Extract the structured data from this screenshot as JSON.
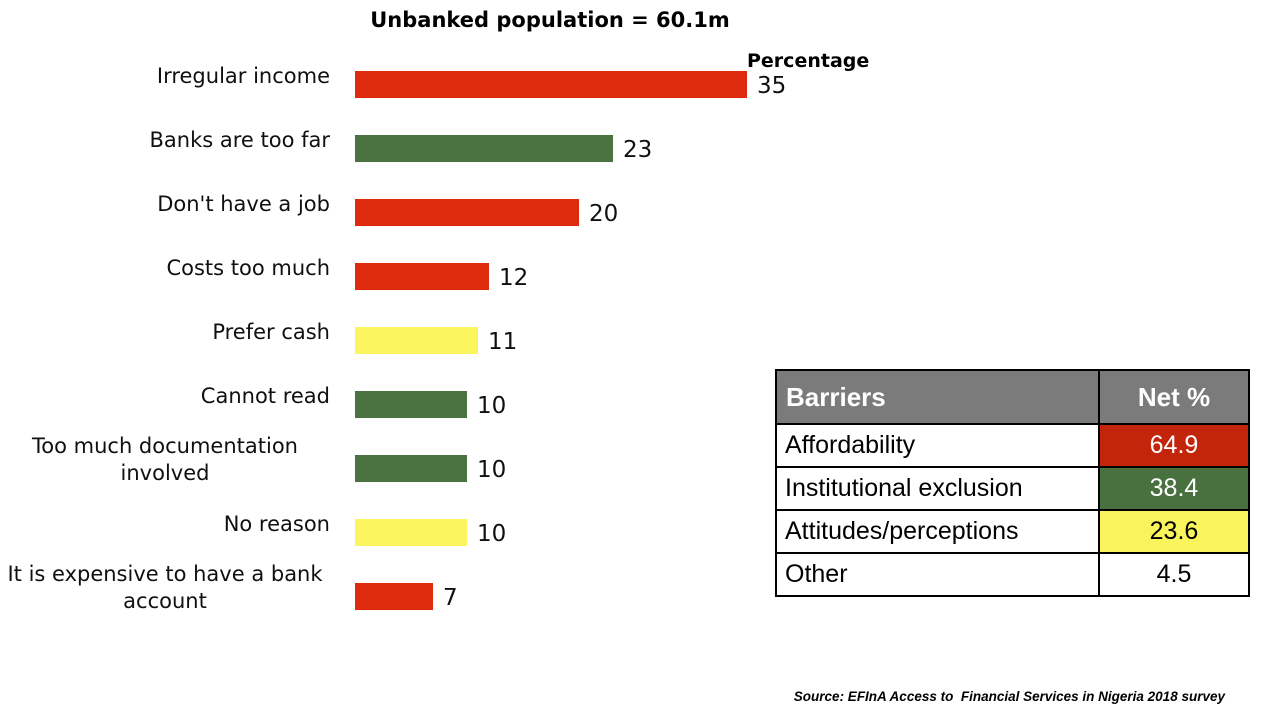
{
  "title": "Unbanked population = 60.1m",
  "chart_data": {
    "type": "bar",
    "orientation": "horizontal",
    "title": "Unbanked population = 60.1m",
    "value_axis_label": "Percentage",
    "categories": [
      "Irregular income",
      "Banks are too far",
      "Don't have a job",
      "Costs too much",
      "Prefer cash",
      "Cannot read",
      "Too much documentation involved",
      "No reason",
      "It is expensive to have a bank account"
    ],
    "values": [
      35,
      23,
      20,
      12,
      11,
      10,
      10,
      10,
      7
    ],
    "bar_colors": [
      "#DE2B0D",
      "#4A7341",
      "#DE2B0D",
      "#DE2B0D",
      "#FBF55E",
      "#4A7341",
      "#4A7341",
      "#FBF55E",
      "#DE2B0D"
    ],
    "xlim": [
      0,
      35
    ],
    "data_labels": true,
    "gridlines": false,
    "legend": "none"
  },
  "table": {
    "headers": [
      "Barriers",
      "Net %"
    ],
    "header_bg": "#7B7B7B",
    "header_text_color": "#FFFFFF",
    "rows": [
      {
        "label": "Affordability",
        "value": "64.9",
        "value_bg": "#C3250B",
        "value_text_color": "#FFFFFF"
      },
      {
        "label": "Institutional exclusion",
        "value": "38.4",
        "value_bg": "#48713F",
        "value_text_color": "#FFFFFF"
      },
      {
        "label": "Attitudes/perceptions",
        "value": "23.6",
        "value_bg": "#FAF45C",
        "value_text_color": "#000000"
      },
      {
        "label": "Other",
        "value": "4.5",
        "value_bg": "#FFFFFF",
        "value_text_color": "#000000"
      }
    ]
  },
  "source": "Source: EFInA Access to  Financial Services in Nigeria 2018 survey",
  "layout_colors": {
    "background": "#FFFFFF",
    "text": "#000000"
  }
}
